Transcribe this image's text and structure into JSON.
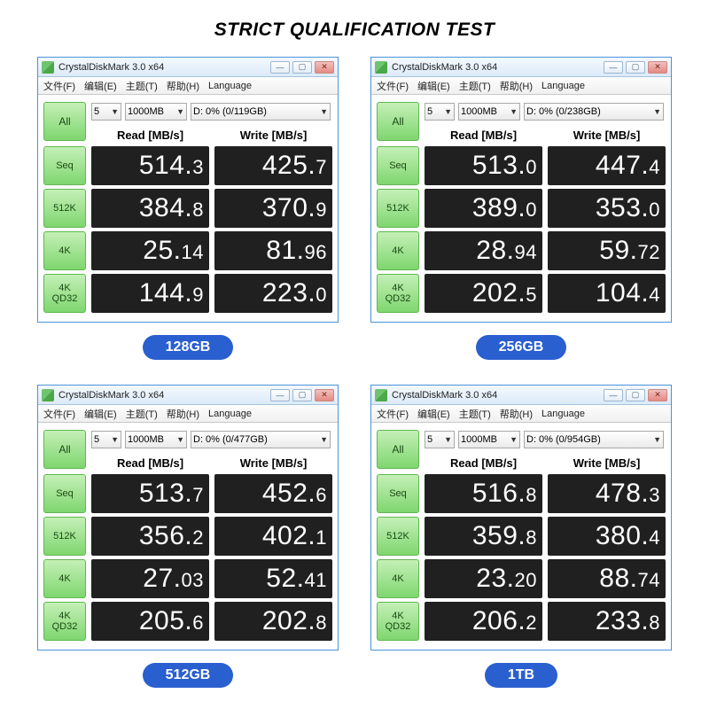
{
  "title": "STRICT QUALIFICATION TEST",
  "colors": {
    "accent_blue": "#2a5fd0",
    "btn_green_top": "#c4f0b7",
    "btn_green_bot": "#7fd66f",
    "val_bg": "#202020",
    "win_border": "#4a94d6"
  },
  "common": {
    "window_title": "CrystalDiskMark 3.0 x64",
    "menus": [
      "文件(F)",
      "编辑(E)",
      "主题(T)",
      "帮助(H)",
      "Language"
    ],
    "all_label": "All",
    "runs": "5",
    "size": "1000MB",
    "read_header": "Read [MB/s]",
    "write_header": "Write [MB/s]",
    "row_labels": [
      [
        "Seq"
      ],
      [
        "512K"
      ],
      [
        "4K"
      ],
      [
        "4K",
        "QD32"
      ]
    ],
    "tb_min": "—",
    "tb_max": "▢",
    "tb_close": "✕"
  },
  "panels": [
    {
      "drive": "D: 0% (0/119GB)",
      "rows": [
        {
          "read": {
            "i": "514",
            "f": "3"
          },
          "write": {
            "i": "425",
            "f": "7"
          }
        },
        {
          "read": {
            "i": "384",
            "f": "8"
          },
          "write": {
            "i": "370",
            "f": "9"
          }
        },
        {
          "read": {
            "i": "25",
            "f": "14"
          },
          "write": {
            "i": "81",
            "f": "96"
          }
        },
        {
          "read": {
            "i": "144",
            "f": "9"
          },
          "write": {
            "i": "223",
            "f": "0"
          }
        }
      ],
      "badge": "128GB"
    },
    {
      "drive": "D: 0% (0/238GB)",
      "rows": [
        {
          "read": {
            "i": "513",
            "f": "0"
          },
          "write": {
            "i": "447",
            "f": "4"
          }
        },
        {
          "read": {
            "i": "389",
            "f": "0"
          },
          "write": {
            "i": "353",
            "f": "0"
          }
        },
        {
          "read": {
            "i": "28",
            "f": "94"
          },
          "write": {
            "i": "59",
            "f": "72"
          }
        },
        {
          "read": {
            "i": "202",
            "f": "5"
          },
          "write": {
            "i": "104",
            "f": "4"
          }
        }
      ],
      "badge": "256GB"
    },
    {
      "drive": "D: 0% (0/477GB)",
      "rows": [
        {
          "read": {
            "i": "513",
            "f": "7"
          },
          "write": {
            "i": "452",
            "f": "6"
          }
        },
        {
          "read": {
            "i": "356",
            "f": "2"
          },
          "write": {
            "i": "402",
            "f": "1"
          }
        },
        {
          "read": {
            "i": "27",
            "f": "03"
          },
          "write": {
            "i": "52",
            "f": "41"
          }
        },
        {
          "read": {
            "i": "205",
            "f": "6"
          },
          "write": {
            "i": "202",
            "f": "8"
          }
        }
      ],
      "badge": "512GB"
    },
    {
      "drive": "D: 0% (0/954GB)",
      "rows": [
        {
          "read": {
            "i": "516",
            "f": "8"
          },
          "write": {
            "i": "478",
            "f": "3"
          }
        },
        {
          "read": {
            "i": "359",
            "f": "8"
          },
          "write": {
            "i": "380",
            "f": "4"
          }
        },
        {
          "read": {
            "i": "23",
            "f": "20"
          },
          "write": {
            "i": "88",
            "f": "74"
          }
        },
        {
          "read": {
            "i": "206",
            "f": "2"
          },
          "write": {
            "i": "233",
            "f": "8"
          }
        }
      ],
      "badge": "1TB"
    }
  ]
}
